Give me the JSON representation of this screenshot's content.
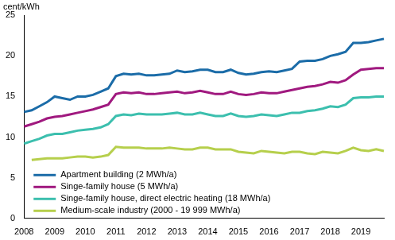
{
  "chart_data": {
    "type": "line",
    "y_label": "cent/kWh",
    "categories": [
      "2008",
      null,
      null,
      null,
      "2009",
      null,
      null,
      null,
      "2010",
      null,
      null,
      null,
      "2011",
      null,
      null,
      null,
      "2012",
      null,
      null,
      null,
      "2013",
      null,
      null,
      null,
      "2014",
      null,
      null,
      null,
      "2015",
      null,
      null,
      null,
      "2016",
      null,
      null,
      null,
      "2017",
      null,
      null,
      null,
      "2018",
      null,
      null,
      null,
      "2019",
      null,
      null,
      null
    ],
    "series": [
      {
        "name": "Apartment building (2 MWh/a)",
        "color": "#1b6ca8",
        "values": [
          13.1,
          13.3,
          13.8,
          14.3,
          15.0,
          14.8,
          14.6,
          15.0,
          15.0,
          15.2,
          15.6,
          16.0,
          17.5,
          17.8,
          17.7,
          17.8,
          17.6,
          17.6,
          17.7,
          17.8,
          18.2,
          18.0,
          18.1,
          18.3,
          18.3,
          18.0,
          18.0,
          18.3,
          17.9,
          17.7,
          17.8,
          18.0,
          18.1,
          18.0,
          18.2,
          18.4,
          19.3,
          19.4,
          19.4,
          19.6,
          20.0,
          20.2,
          20.5,
          21.6,
          21.6,
          21.7,
          21.9,
          22.1
        ]
      },
      {
        "name": "Singe-family house (5 MWh/a)",
        "color": "#a0197f",
        "values": [
          11.3,
          11.6,
          11.9,
          12.3,
          12.5,
          12.6,
          12.8,
          13.0,
          13.2,
          13.4,
          13.7,
          14.0,
          15.3,
          15.5,
          15.4,
          15.5,
          15.3,
          15.3,
          15.4,
          15.5,
          15.6,
          15.4,
          15.5,
          15.7,
          15.5,
          15.3,
          15.3,
          15.6,
          15.3,
          15.2,
          15.3,
          15.5,
          15.4,
          15.4,
          15.6,
          15.8,
          16.0,
          16.2,
          16.3,
          16.5,
          16.8,
          16.7,
          17.0,
          17.7,
          18.3,
          18.4,
          18.5,
          18.5
        ]
      },
      {
        "name": "Singe-family house, direct electric heating (18 MWh/a)",
        "color": "#3cbfae",
        "values": [
          9.2,
          9.5,
          9.8,
          10.2,
          10.4,
          10.4,
          10.6,
          10.8,
          10.9,
          11.0,
          11.2,
          11.6,
          12.6,
          12.8,
          12.7,
          12.9,
          12.8,
          12.8,
          12.8,
          12.9,
          13.0,
          12.8,
          12.8,
          13.0,
          12.8,
          12.6,
          12.6,
          12.9,
          12.6,
          12.5,
          12.6,
          12.8,
          12.7,
          12.6,
          12.8,
          13.0,
          13.0,
          13.2,
          13.3,
          13.5,
          13.8,
          13.7,
          14.0,
          14.8,
          14.9,
          14.9,
          15.0,
          15.0
        ]
      },
      {
        "name": "Medium-scale industry (2000 - 19 999 MWh/a)",
        "color": "#b6cf4c",
        "values": [
          null,
          7.2,
          7.3,
          7.4,
          7.4,
          7.4,
          7.5,
          7.6,
          7.6,
          7.5,
          7.6,
          7.8,
          8.8,
          8.7,
          8.7,
          8.7,
          8.6,
          8.6,
          8.6,
          8.7,
          8.6,
          8.5,
          8.5,
          8.7,
          8.7,
          8.5,
          8.5,
          8.5,
          8.2,
          8.1,
          8.0,
          8.3,
          8.2,
          8.1,
          8.0,
          8.2,
          8.2,
          8.0,
          7.9,
          8.2,
          8.1,
          8.0,
          8.3,
          8.7,
          8.4,
          8.3,
          8.5,
          8.3
        ]
      }
    ],
    "ylim": [
      0,
      25
    ],
    "yticks": [
      0,
      5,
      10,
      15,
      20,
      25
    ],
    "grid": false,
    "legend": "lower left"
  }
}
